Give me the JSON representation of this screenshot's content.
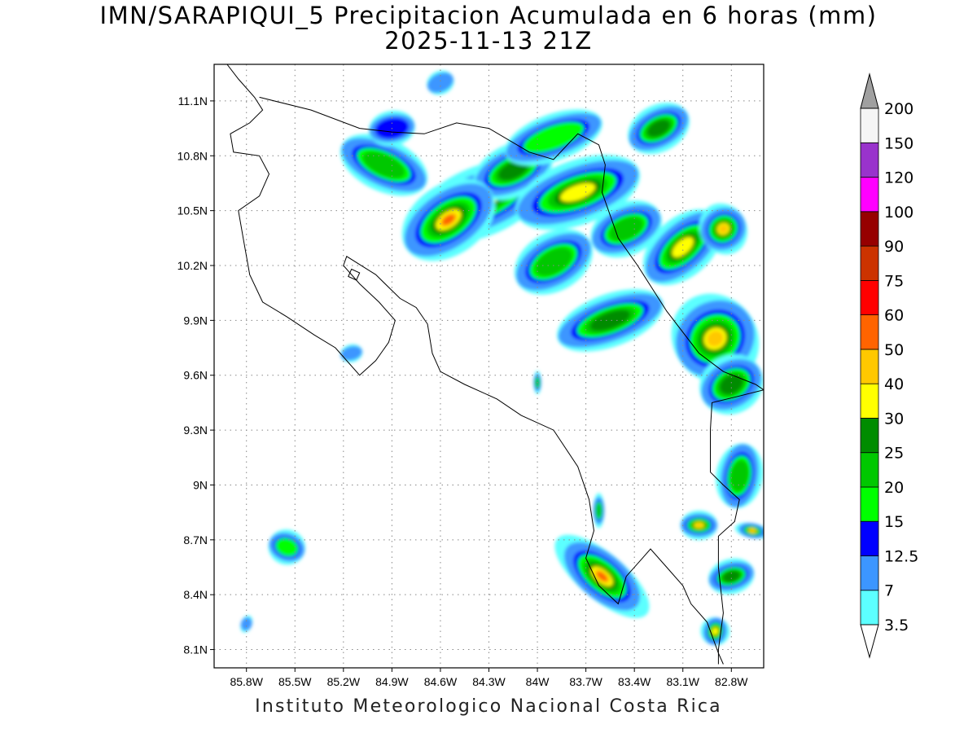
{
  "header": {
    "title_line1": "IMN/SARAPIQUI_5 Precipitacion Acumulada en 6 horas (mm)",
    "title_line2": "2025-11-13 21Z"
  },
  "footer": {
    "credit": "Instituto Meteorologico Nacional Costa Rica"
  },
  "axes": {
    "lon_range": [
      -86.0,
      -82.6
    ],
    "lat_range": [
      8.0,
      11.3
    ],
    "lon_ticks": [
      {
        "value": -85.8,
        "label": "85.8W"
      },
      {
        "value": -85.5,
        "label": "85.5W"
      },
      {
        "value": -85.2,
        "label": "85.2W"
      },
      {
        "value": -84.9,
        "label": "84.9W"
      },
      {
        "value": -84.6,
        "label": "84.6W"
      },
      {
        "value": -84.3,
        "label": "84.3W"
      },
      {
        "value": -84.0,
        "label": "84W"
      },
      {
        "value": -83.7,
        "label": "83.7W"
      },
      {
        "value": -83.4,
        "label": "83.4W"
      },
      {
        "value": -83.1,
        "label": "83.1W"
      },
      {
        "value": -82.8,
        "label": "82.8W"
      }
    ],
    "lat_ticks": [
      {
        "value": 11.1,
        "label": "11.1N"
      },
      {
        "value": 10.8,
        "label": "10.8N"
      },
      {
        "value": 10.5,
        "label": "10.5N"
      },
      {
        "value": 10.2,
        "label": "10.2N"
      },
      {
        "value": 9.9,
        "label": "9.9N"
      },
      {
        "value": 9.6,
        "label": "9.6N"
      },
      {
        "value": 9.3,
        "label": "9.3N"
      },
      {
        "value": 9.0,
        "label": "9N"
      },
      {
        "value": 8.7,
        "label": "8.7N"
      },
      {
        "value": 8.4,
        "label": "8.4N"
      },
      {
        "value": 8.1,
        "label": "8.1N"
      }
    ],
    "grid": "dotted"
  },
  "legend": {
    "placement": "right",
    "under_color": "#ffffff",
    "over_color": "#a0a0a0",
    "bins": [
      {
        "label": "3.5",
        "color": "#5cffff"
      },
      {
        "label": "7",
        "color": "#3c96ff"
      },
      {
        "label": "12.5",
        "color": "#0000ff"
      },
      {
        "label": "15",
        "color": "#00ff00"
      },
      {
        "label": "20",
        "color": "#00c800"
      },
      {
        "label": "25",
        "color": "#008c00"
      },
      {
        "label": "30",
        "color": "#ffff00"
      },
      {
        "label": "40",
        "color": "#ffc800"
      },
      {
        "label": "50",
        "color": "#ff6400"
      },
      {
        "label": "60",
        "color": "#ff0000"
      },
      {
        "label": "75",
        "color": "#cc3300"
      },
      {
        "label": "90",
        "color": "#960000"
      },
      {
        "label": "100",
        "color": "#ff00ff"
      },
      {
        "label": "120",
        "color": "#9933cc"
      },
      {
        "label": "150",
        "color": "#f5f5f5"
      },
      {
        "label": "200",
        "color": "#a0a0a0"
      }
    ]
  },
  "rain_bands": [
    {
      "lon": -84.35,
      "lat": 10.55,
      "len": 0.75,
      "wid": 0.12,
      "ang": 22,
      "lvl": 7
    },
    {
      "lon": -84.15,
      "lat": 10.72,
      "len": 0.45,
      "wid": 0.09,
      "ang": 25,
      "lvl": 5
    },
    {
      "lon": -83.25,
      "lat": 10.95,
      "len": 0.35,
      "wid": 0.08,
      "ang": 28,
      "lvl": 5
    },
    {
      "lon": -83.75,
      "lat": 10.6,
      "len": 0.7,
      "wid": 0.11,
      "ang": 20,
      "lvl": 6
    },
    {
      "lon": -84.55,
      "lat": 10.45,
      "len": 0.55,
      "wid": 0.12,
      "ang": 35,
      "lvl": 8
    },
    {
      "lon": -84.95,
      "lat": 10.75,
      "len": 0.5,
      "wid": 0.09,
      "ang": -25,
      "lvl": 4
    },
    {
      "lon": -83.9,
      "lat": 10.9,
      "len": 0.55,
      "wid": 0.08,
      "ang": 20,
      "lvl": 3
    },
    {
      "lon": -83.45,
      "lat": 10.4,
      "len": 0.4,
      "wid": 0.09,
      "ang": 25,
      "lvl": 4
    },
    {
      "lon": -83.55,
      "lat": 9.9,
      "len": 0.6,
      "wid": 0.09,
      "ang": 20,
      "lvl": 5
    },
    {
      "lon": -83.1,
      "lat": 10.3,
      "len": 0.5,
      "wid": 0.1,
      "ang": 42,
      "lvl": 6
    },
    {
      "lon": -82.85,
      "lat": 10.4,
      "len": 0.25,
      "wid": 0.09,
      "ang": 30,
      "lvl": 7
    },
    {
      "lon": -83.9,
      "lat": 10.22,
      "len": 0.45,
      "wid": 0.1,
      "ang": 30,
      "lvl": 4
    },
    {
      "lon": -82.9,
      "lat": 9.8,
      "len": 0.45,
      "wid": 0.16,
      "ang": 38,
      "lvl": 7
    },
    {
      "lon": -82.8,
      "lat": 9.55,
      "len": 0.35,
      "wid": 0.1,
      "ang": 30,
      "lvl": 5
    },
    {
      "lon": -82.75,
      "lat": 9.05,
      "len": 0.35,
      "wid": 0.08,
      "ang": 80,
      "lvl": 4
    },
    {
      "lon": -83.6,
      "lat": 8.5,
      "len": 0.25,
      "wid": 0.2,
      "ang": 50,
      "lvl": 8
    },
    {
      "lon": -83.62,
      "lat": 8.86,
      "len": 0.06,
      "wid": 0.06,
      "ang": 0,
      "lvl": 4
    },
    {
      "lon": -83.0,
      "lat": 8.78,
      "len": 0.2,
      "wid": 0.05,
      "ang": 0,
      "lvl": 7
    },
    {
      "lon": -82.8,
      "lat": 8.5,
      "len": 0.25,
      "wid": 0.06,
      "ang": 15,
      "lvl": 5
    },
    {
      "lon": -82.67,
      "lat": 8.75,
      "len": 0.08,
      "wid": 0.06,
      "ang": 80,
      "lvl": 7
    },
    {
      "lon": -82.9,
      "lat": 8.2,
      "len": 0.15,
      "wid": 0.05,
      "ang": 75,
      "lvl": 6
    },
    {
      "lon": -84.0,
      "lat": 9.56,
      "len": 0.04,
      "wid": 0.04,
      "ang": 0,
      "lvl": 4
    },
    {
      "lon": -85.55,
      "lat": 8.66,
      "len": 0.2,
      "wid": 0.06,
      "ang": -20,
      "lvl": 3
    },
    {
      "lon": -85.8,
      "lat": 8.24,
      "len": 0.06,
      "wid": 0.03,
      "ang": -20,
      "lvl": 1
    },
    {
      "lon": -85.15,
      "lat": 9.72,
      "len": 0.12,
      "wid": 0.03,
      "ang": 15,
      "lvl": 1
    },
    {
      "lon": -84.6,
      "lat": 11.2,
      "len": 0.15,
      "wid": 0.04,
      "ang": 25,
      "lvl": 1
    },
    {
      "lon": -84.9,
      "lat": 10.95,
      "len": 0.25,
      "wid": 0.06,
      "ang": 10,
      "lvl": 2
    }
  ],
  "coastline": [
    [
      -85.92,
      11.3
    ],
    [
      -85.85,
      11.22
    ],
    [
      -85.75,
      11.12
    ],
    [
      -85.7,
      11.05
    ],
    [
      -85.78,
      10.98
    ],
    [
      -85.9,
      10.92
    ],
    [
      -85.88,
      10.82
    ],
    [
      -85.72,
      10.8
    ],
    [
      -85.66,
      10.7
    ],
    [
      -85.72,
      10.58
    ],
    [
      -85.85,
      10.5
    ],
    [
      -85.82,
      10.35
    ],
    [
      -85.78,
      10.15
    ],
    [
      -85.7,
      10.0
    ],
    [
      -85.55,
      9.92
    ],
    [
      -85.38,
      9.82
    ],
    [
      -85.25,
      9.75
    ],
    [
      -85.1,
      9.6
    ],
    [
      -85.0,
      9.68
    ],
    [
      -84.92,
      9.78
    ],
    [
      -84.88,
      9.9
    ],
    [
      -84.98,
      10.0
    ],
    [
      -85.1,
      10.1
    ],
    [
      -85.2,
      10.2
    ],
    [
      -85.18,
      10.25
    ],
    [
      -85.0,
      10.15
    ],
    [
      -84.85,
      10.02
    ],
    [
      -84.75,
      9.97
    ],
    [
      -84.68,
      9.88
    ],
    [
      -84.65,
      9.72
    ],
    [
      -84.6,
      9.62
    ],
    [
      -84.45,
      9.55
    ],
    [
      -84.25,
      9.47
    ],
    [
      -84.1,
      9.38
    ],
    [
      -83.9,
      9.3
    ],
    [
      -83.75,
      9.1
    ],
    [
      -83.68,
      8.92
    ],
    [
      -83.65,
      8.75
    ],
    [
      -83.7,
      8.6
    ],
    [
      -83.62,
      8.45
    ],
    [
      -83.5,
      8.35
    ],
    [
      -83.45,
      8.5
    ],
    [
      -83.35,
      8.6
    ],
    [
      -83.3,
      8.65
    ],
    [
      -83.2,
      8.55
    ],
    [
      -83.1,
      8.45
    ],
    [
      -83.05,
      8.35
    ],
    [
      -82.95,
      8.25
    ],
    [
      -82.88,
      8.08
    ],
    [
      -82.85,
      8.02
    ]
  ],
  "border_north": [
    [
      -85.72,
      11.12
    ],
    [
      -85.4,
      11.05
    ],
    [
      -85.1,
      10.95
    ],
    [
      -84.9,
      10.93
    ],
    [
      -84.7,
      10.92
    ],
    [
      -84.5,
      10.98
    ],
    [
      -84.3,
      10.95
    ],
    [
      -84.05,
      10.82
    ],
    [
      -83.9,
      10.78
    ],
    [
      -83.75,
      10.92
    ],
    [
      -83.62,
      10.86
    ],
    [
      -83.58,
      10.75
    ],
    [
      -83.6,
      10.6
    ],
    [
      -83.5,
      10.35
    ],
    [
      -83.38,
      10.2
    ],
    [
      -83.2,
      9.95
    ],
    [
      -83.0,
      9.72
    ],
    [
      -82.85,
      9.62
    ],
    [
      -82.65,
      9.55
    ],
    [
      -82.6,
      9.52
    ]
  ],
  "border_south": [
    [
      -82.6,
      9.52
    ],
    [
      -82.78,
      9.48
    ],
    [
      -82.92,
      9.45
    ],
    [
      -82.93,
      9.3
    ],
    [
      -82.93,
      9.07
    ],
    [
      -82.85,
      9.0
    ],
    [
      -82.75,
      8.92
    ],
    [
      -82.78,
      8.8
    ],
    [
      -82.88,
      8.72
    ],
    [
      -82.88,
      8.55
    ],
    [
      -82.85,
      8.3
    ],
    [
      -82.88,
      8.1
    ],
    [
      -82.88,
      8.02
    ]
  ],
  "islands": [
    [
      [
        -85.15,
        10.18
      ],
      [
        -85.1,
        10.16
      ],
      [
        -85.12,
        10.12
      ],
      [
        -85.17,
        10.14
      ]
    ]
  ]
}
